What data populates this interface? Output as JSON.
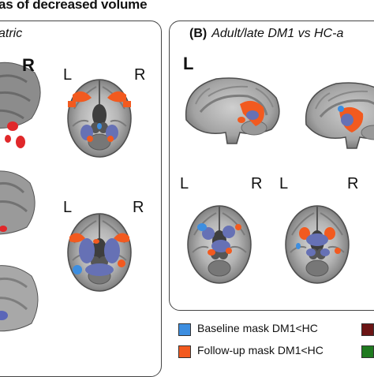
{
  "figure": {
    "title": "as of decreased volume"
  },
  "panel_a": {
    "title_text": "atric",
    "label_top": "R",
    "axial_labels": [
      [
        "L",
        "R"
      ],
      [
        "L",
        "R"
      ]
    ]
  },
  "panel_b": {
    "label": "(B)",
    "title_text": "Adult/late DM1 vs HC-a",
    "label_top": "L",
    "axial_labels": [
      [
        "L",
        "R"
      ],
      [
        "L",
        "R"
      ]
    ]
  },
  "legend": [
    {
      "label": "Baseline mask DM1<HC",
      "color": "#3d8ee0"
    },
    {
      "label": "Follow-up mask DM1<HC",
      "color": "#f25a1f"
    }
  ],
  "legend_extra_colors": [
    "#6b1414",
    "#1f7a1f"
  ]
}
